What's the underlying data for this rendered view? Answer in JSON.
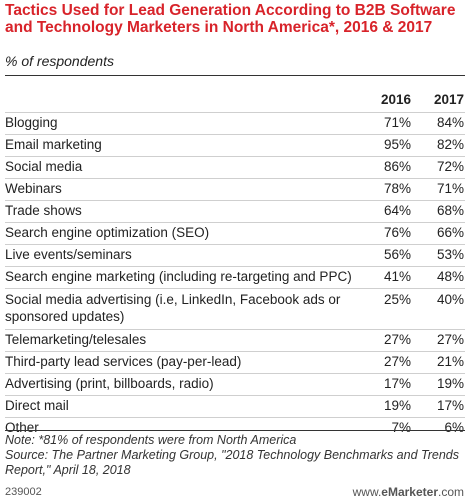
{
  "chart_data": {
    "type": "table",
    "title": "Tactics Used for Lead Generation According to B2B Software and Technology Marketers in North America*, 2016 & 2017",
    "subtitle": "% of respondents",
    "columns": [
      "2016",
      "2017"
    ],
    "rows": [
      {
        "label": "Blogging",
        "values": [
          "71%",
          "84%"
        ]
      },
      {
        "label": "Email marketing",
        "values": [
          "95%",
          "82%"
        ]
      },
      {
        "label": "Social media",
        "values": [
          "86%",
          "72%"
        ]
      },
      {
        "label": "Webinars",
        "values": [
          "78%",
          "71%"
        ]
      },
      {
        "label": "Trade shows",
        "values": [
          "64%",
          "68%"
        ]
      },
      {
        "label": "Search engine optimization (SEO)",
        "values": [
          "76%",
          "66%"
        ]
      },
      {
        "label": "Live events/seminars",
        "values": [
          "56%",
          "53%"
        ]
      },
      {
        "label": "Search engine marketing (including re-targeting and PPC)",
        "values": [
          "41%",
          "48%"
        ]
      },
      {
        "label": "Social media advertising (i.e, LinkedIn, Facebook ads or sponsored updates)",
        "values": [
          "25%",
          "40%"
        ],
        "tall": true
      },
      {
        "label": "Telemarketing/telesales",
        "values": [
          "27%",
          "27%"
        ]
      },
      {
        "label": "Third-party lead services (pay-per-lead)",
        "values": [
          "27%",
          "21%"
        ]
      },
      {
        "label": "Advertising (print, billboards, radio)",
        "values": [
          "17%",
          "19%"
        ]
      },
      {
        "label": "Direct mail",
        "values": [
          "19%",
          "17%"
        ]
      },
      {
        "label": "Other",
        "values": [
          "7%",
          "6%"
        ]
      }
    ],
    "note": "Note: *81% of respondents were from North America",
    "source": "Source: The Partner Marketing Group, \"2018 Technology Benchmarks and Trends Report,\" April 18, 2018"
  },
  "footer": {
    "id": "239002",
    "brand_prefix": "www.",
    "brand_bold": "eMarketer",
    "brand_suffix": ".com"
  },
  "colors": {
    "title": "#d8232a",
    "rule": "#cfcfcf"
  }
}
